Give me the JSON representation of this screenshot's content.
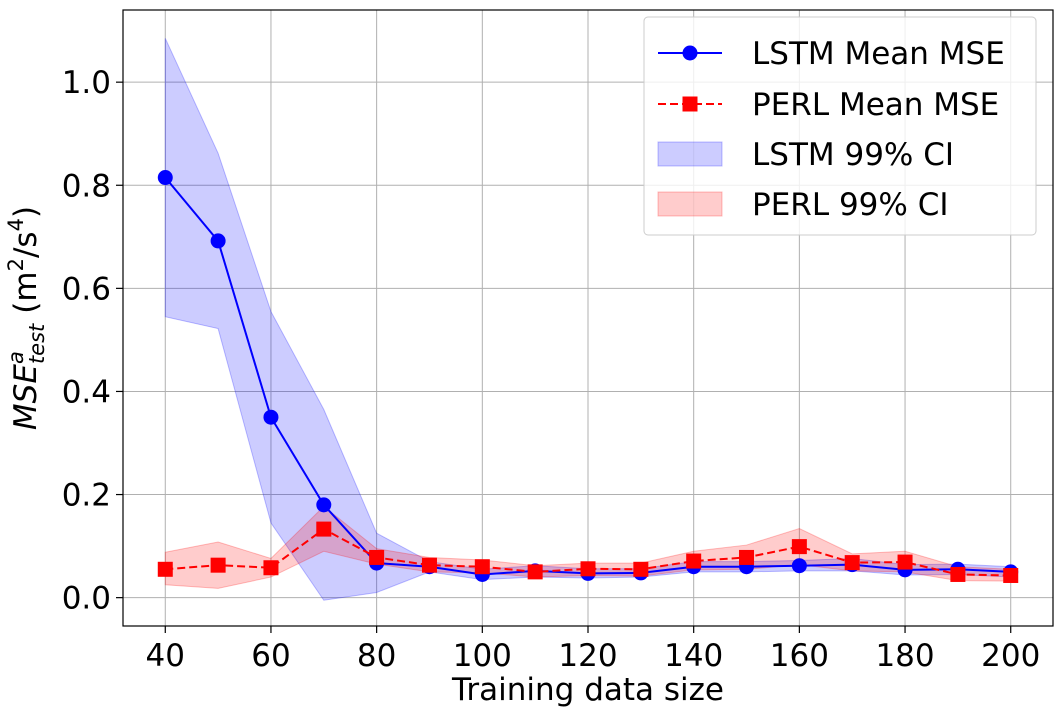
{
  "chart_data": {
    "type": "line",
    "xlabel": "Training data size",
    "ylabel": {
      "base": "MSE",
      "sup": "a",
      "sub": "test",
      "unit_open": "(m",
      "unit_sup1": "2",
      "unit_mid": "/s",
      "unit_sup2": "4",
      "unit_close": ")"
    },
    "xlim": [
      32,
      208
    ],
    "ylim": [
      -0.055,
      1.14
    ],
    "xticks": [
      40,
      60,
      80,
      100,
      120,
      140,
      160,
      180,
      200
    ],
    "xtick_labels": [
      "40",
      "60",
      "80",
      "100",
      "120",
      "140",
      "160",
      "180",
      "200"
    ],
    "yticks": [
      0.0,
      0.2,
      0.4,
      0.6,
      0.8,
      1.0
    ],
    "ytick_labels": [
      "0.0",
      "0.2",
      "0.4",
      "0.6",
      "0.8",
      "1.0"
    ],
    "grid": true,
    "legend_position": "top-right",
    "x": [
      40,
      50,
      60,
      70,
      80,
      90,
      100,
      110,
      120,
      130,
      140,
      150,
      160,
      170,
      180,
      190,
      200
    ],
    "series": [
      {
        "name": "LSTM Mean MSE",
        "color": "#0000ff",
        "marker": "circle",
        "linestyle": "solid",
        "values": [
          0.815,
          0.692,
          0.35,
          0.18,
          0.067,
          0.06,
          0.045,
          0.052,
          0.047,
          0.048,
          0.06,
          0.06,
          0.062,
          0.064,
          0.054,
          0.055,
          0.05
        ]
      },
      {
        "name": "PERL Mean MSE",
        "color": "#ff0000",
        "marker": "square",
        "linestyle": "dashed",
        "values": [
          0.055,
          0.063,
          0.058,
          0.133,
          0.078,
          0.063,
          0.06,
          0.05,
          0.056,
          0.055,
          0.071,
          0.078,
          0.099,
          0.068,
          0.069,
          0.045,
          0.043
        ]
      }
    ],
    "bands": [
      {
        "name": "LSTM 99% CI",
        "color": "#0000ff",
        "opacity": 0.2,
        "lower": [
          0.545,
          0.522,
          0.145,
          -0.005,
          0.01,
          0.05,
          0.035,
          0.04,
          0.038,
          0.04,
          0.05,
          0.05,
          0.052,
          0.052,
          0.044,
          0.045,
          0.04
        ],
        "upper": [
          1.085,
          0.862,
          0.555,
          0.365,
          0.125,
          0.07,
          0.055,
          0.062,
          0.056,
          0.056,
          0.07,
          0.07,
          0.072,
          0.076,
          0.064,
          0.065,
          0.06
        ]
      },
      {
        "name": "PERL 99% CI",
        "color": "#ff0000",
        "opacity": 0.2,
        "lower": [
          0.025,
          0.018,
          0.04,
          0.09,
          0.065,
          0.05,
          0.048,
          0.04,
          0.043,
          0.042,
          0.054,
          0.055,
          0.064,
          0.052,
          0.05,
          0.033,
          0.032
        ],
        "upper": [
          0.088,
          0.108,
          0.076,
          0.177,
          0.095,
          0.078,
          0.073,
          0.062,
          0.067,
          0.067,
          0.09,
          0.102,
          0.134,
          0.085,
          0.09,
          0.06,
          0.055
        ]
      }
    ]
  }
}
